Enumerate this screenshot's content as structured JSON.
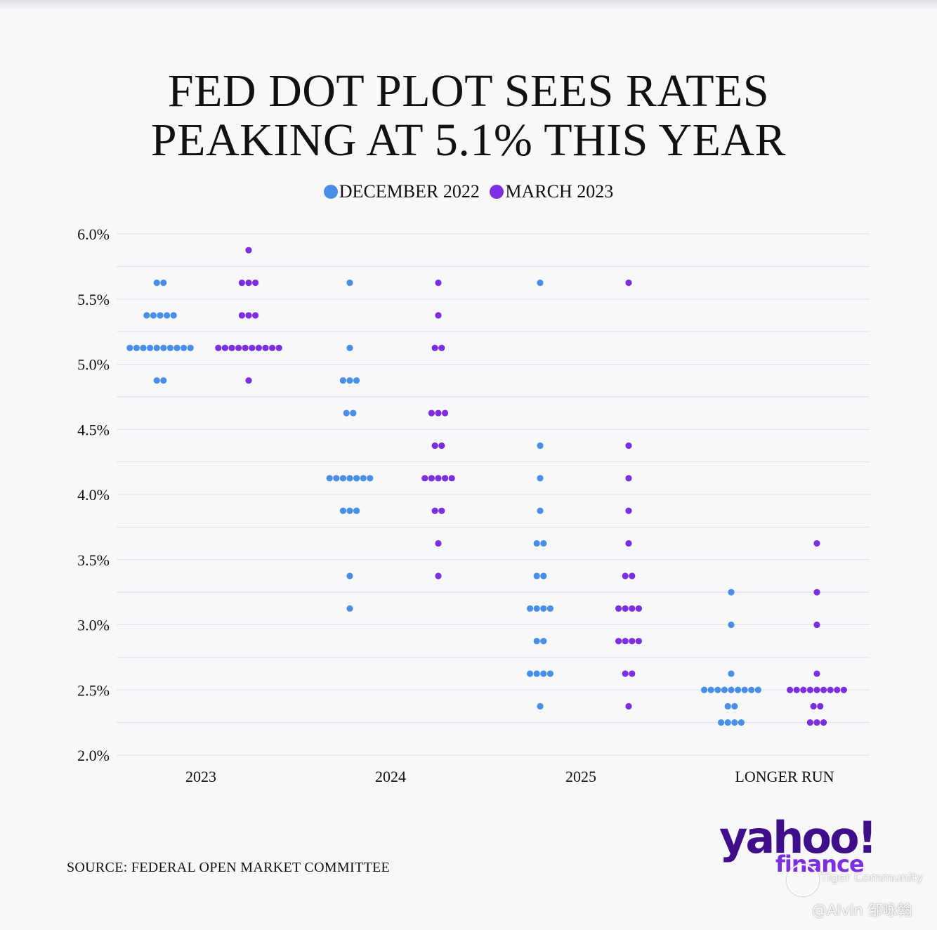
{
  "title_line1": "FED DOT PLOT SEES RATES",
  "title_line2": "PEAKING AT 5.1% THIS YEAR",
  "source": "SOURCE: FEDERAL OPEN MARKET COMMITTEE",
  "logo": {
    "yahoo": "yahoo!",
    "finance": "finance"
  },
  "watermark": {
    "community": "Tiger Community",
    "user": "@Alvin 邹咏翰"
  },
  "colors": {
    "december": "#4a8fe7",
    "march": "#7b2fe0",
    "grid": "#dedfe3"
  },
  "chart_data": {
    "type": "scatter",
    "title": "FED DOT PLOT SEES RATES PEAKING AT 5.1% THIS YEAR",
    "xlabel": "",
    "ylabel": "",
    "categories": [
      "2023",
      "2024",
      "2025",
      "LONGER RUN"
    ],
    "ylim": [
      2.0,
      6.0
    ],
    "yticks": [
      "6.0%",
      "5.5%",
      "5.0%",
      "4.5%",
      "4.0%",
      "3.5%",
      "3.0%",
      "2.5%",
      "2.0%"
    ],
    "grid": true,
    "legend_position": "top-center",
    "series": [
      {
        "name": "DECEMBER 2022",
        "color": "#4a8fe7",
        "dots": {
          "2023": [
            [
              5.625,
              2
            ],
            [
              5.375,
              5
            ],
            [
              5.125,
              10
            ],
            [
              4.875,
              2
            ]
          ],
          "2024": [
            [
              5.625,
              1
            ],
            [
              5.125,
              1
            ],
            [
              4.875,
              3
            ],
            [
              4.625,
              2
            ],
            [
              4.125,
              7
            ],
            [
              3.875,
              3
            ],
            [
              3.375,
              1
            ],
            [
              3.125,
              1
            ]
          ],
          "2025": [
            [
              5.625,
              1
            ],
            [
              4.375,
              1
            ],
            [
              4.125,
              1
            ],
            [
              3.875,
              1
            ],
            [
              3.625,
              2
            ],
            [
              3.375,
              2
            ],
            [
              3.125,
              4
            ],
            [
              2.875,
              2
            ],
            [
              2.625,
              4
            ],
            [
              2.375,
              1
            ]
          ],
          "LONGER RUN": [
            [
              3.25,
              1
            ],
            [
              3.0,
              1
            ],
            [
              2.625,
              1
            ],
            [
              2.5,
              9
            ],
            [
              2.375,
              2
            ],
            [
              2.25,
              4
            ]
          ]
        }
      },
      {
        "name": "MARCH 2023",
        "color": "#7b2fe0",
        "dots": {
          "2023": [
            [
              5.875,
              1
            ],
            [
              5.625,
              3
            ],
            [
              5.375,
              3
            ],
            [
              5.125,
              10
            ],
            [
              4.875,
              1
            ]
          ],
          "2024": [
            [
              5.625,
              1
            ],
            [
              5.375,
              1
            ],
            [
              5.125,
              2
            ],
            [
              4.625,
              3
            ],
            [
              4.375,
              2
            ],
            [
              4.125,
              5
            ],
            [
              3.875,
              2
            ],
            [
              3.625,
              1
            ],
            [
              3.375,
              1
            ]
          ],
          "2025": [
            [
              5.625,
              1
            ],
            [
              4.375,
              1
            ],
            [
              4.125,
              1
            ],
            [
              3.875,
              1
            ],
            [
              3.625,
              1
            ],
            [
              3.375,
              2
            ],
            [
              3.125,
              4
            ],
            [
              2.875,
              4
            ],
            [
              2.625,
              2
            ],
            [
              2.375,
              1
            ]
          ],
          "LONGER RUN": [
            [
              3.625,
              1
            ],
            [
              3.25,
              1
            ],
            [
              3.0,
              1
            ],
            [
              2.625,
              1
            ],
            [
              2.5,
              9
            ],
            [
              2.375,
              2
            ],
            [
              2.25,
              3
            ]
          ]
        }
      }
    ]
  }
}
